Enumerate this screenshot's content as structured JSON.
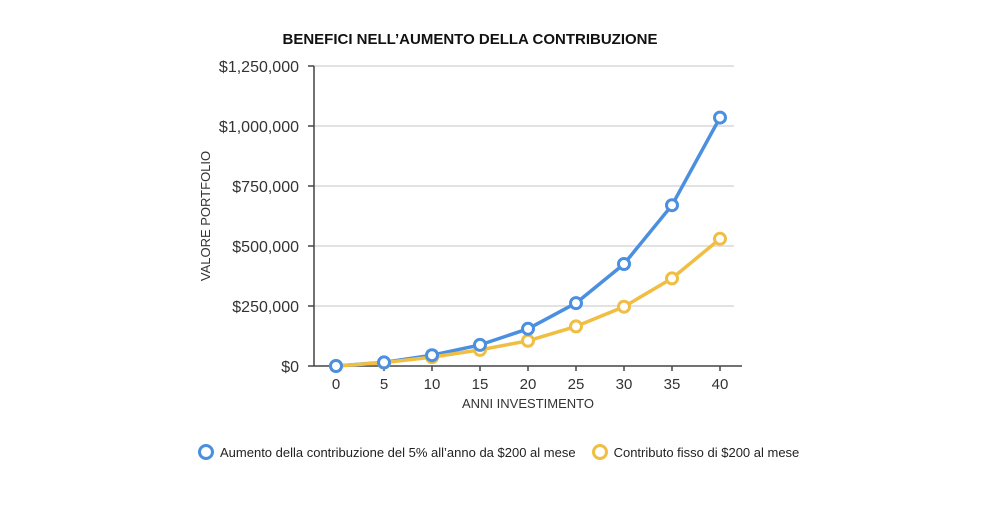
{
  "chart_data": {
    "type": "line",
    "title": "BENEFICI NELL’AUMENTO DELLA CONTRIBUZIONE",
    "xlabel": "ANNI INVESTIMENTO",
    "ylabel": "VALORE PORTFOLIO",
    "x": [
      0,
      5,
      10,
      15,
      20,
      25,
      30,
      35,
      40
    ],
    "x_tick_labels": [
      "0",
      "5",
      "10",
      "15",
      "20",
      "25",
      "30",
      "35",
      "40"
    ],
    "y_ticks": [
      0,
      250000,
      500000,
      750000,
      1000000,
      1250000
    ],
    "y_tick_labels": [
      "$0",
      "$250,000",
      "$500,000",
      "$750,000",
      "$1,000,000",
      "$1,250,000"
    ],
    "ylim": [
      0,
      1250000
    ],
    "grid": true,
    "legend_position": "bottom",
    "series": [
      {
        "name": "Aumento della contribuzione del 5% all’anno da $200 al mese",
        "color": "#4A8FE0",
        "values": [
          0,
          15000,
          45000,
          88000,
          155000,
          262000,
          425000,
          670000,
          1035000
        ]
      },
      {
        "name": "Contributo fisso di $200 al mese",
        "color": "#F0BE42",
        "values": [
          0,
          14000,
          37000,
          67000,
          105000,
          165000,
          247000,
          365000,
          530000
        ]
      }
    ]
  }
}
